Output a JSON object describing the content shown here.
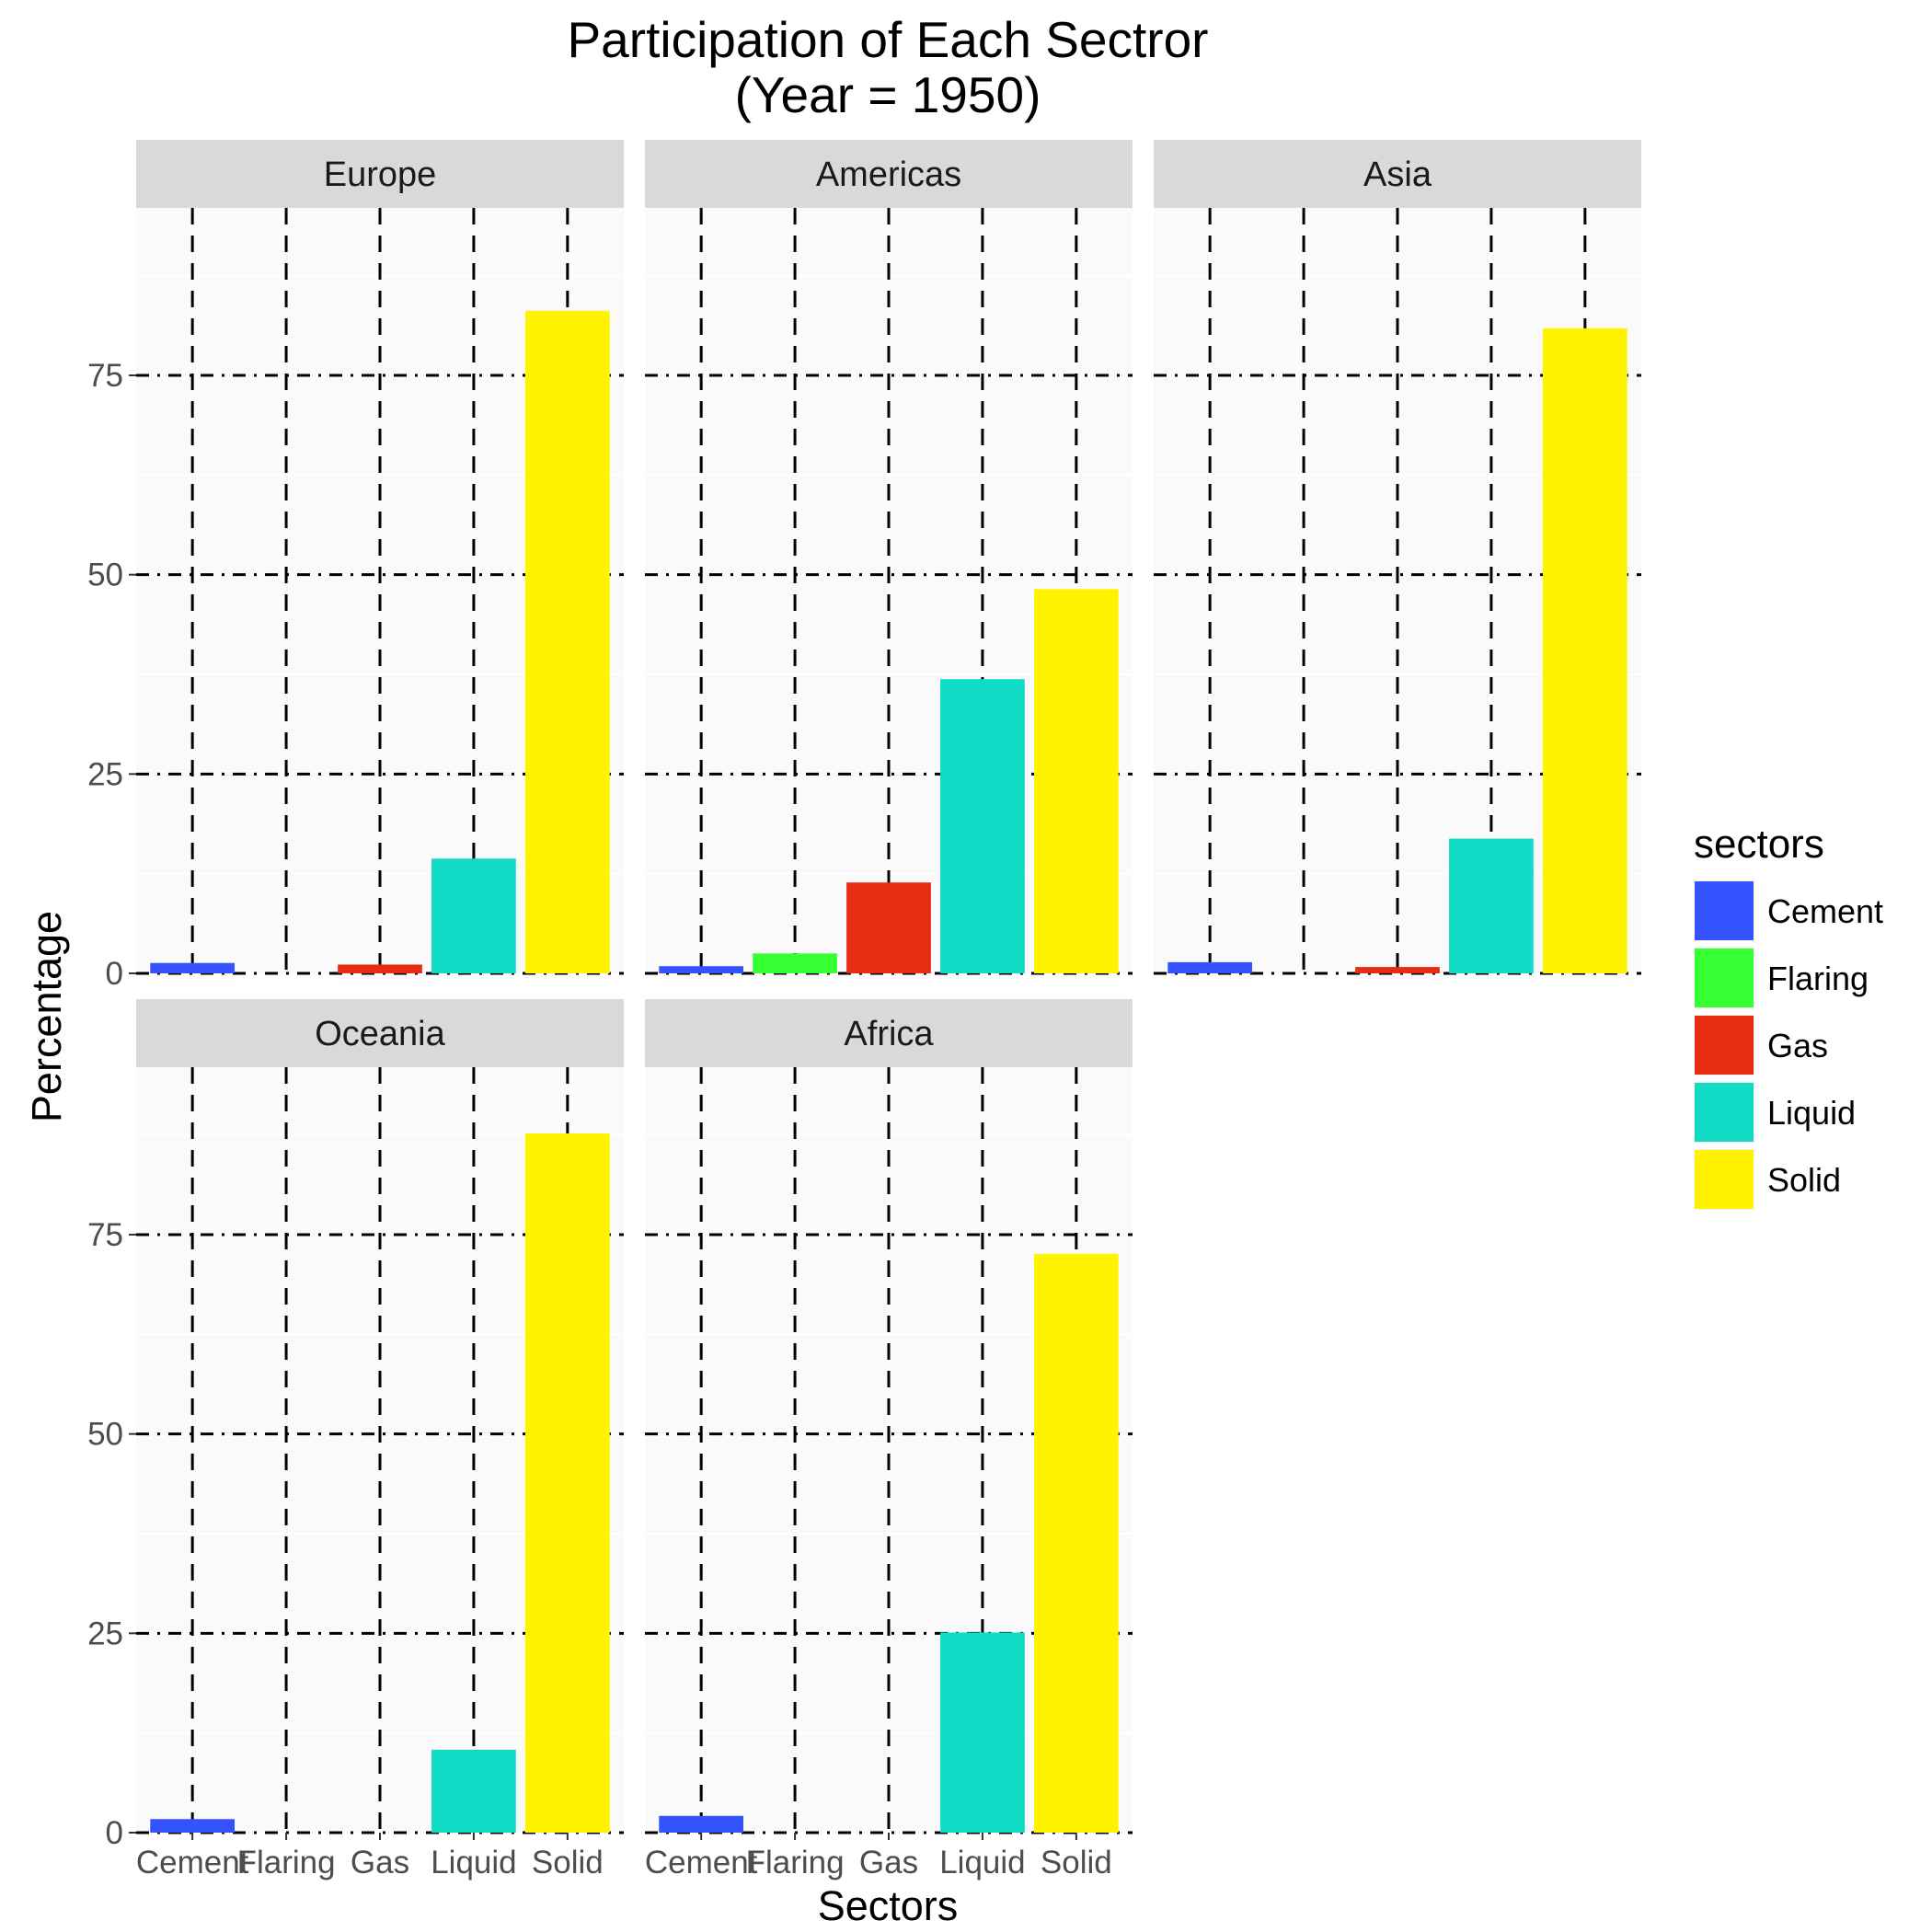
{
  "chart_data": {
    "type": "bar",
    "title_line1": "Participation of Each Sectror",
    "title_line2": "(Year = 1950)",
    "xlabel": "Sectors",
    "ylabel": "Percentage",
    "categories": [
      "Cement",
      "Flaring",
      "Gas",
      "Liquid",
      "Solid"
    ],
    "ylim": [
      0,
      96
    ],
    "yticks": [
      "0",
      "25",
      "50",
      "75"
    ],
    "ytick_values": [
      0,
      25,
      50,
      75
    ],
    "grid": "dashed",
    "legend": {
      "title": "sectors",
      "placement": "right",
      "entries": [
        "Cement",
        "Flaring",
        "Gas",
        "Liquid",
        "Solid"
      ]
    },
    "colors": {
      "Cement": "#3552ff",
      "Flaring": "#36ff32",
      "Gas": "#e72d14",
      "Liquid": "#12dbc5",
      "Solid": "#fff300"
    },
    "facets": [
      {
        "name": "Europe",
        "values": [
          1.3,
          0,
          1.1,
          14.4,
          83.1
        ]
      },
      {
        "name": "Americas",
        "values": [
          0.9,
          2.5,
          11.4,
          36.9,
          48.2
        ]
      },
      {
        "name": "Asia",
        "values": [
          1.4,
          0,
          0.8,
          16.9,
          80.9
        ]
      },
      {
        "name": "Oceania",
        "values": [
          1.7,
          0,
          0,
          10.4,
          87.7
        ]
      },
      {
        "name": "Africa",
        "values": [
          2.1,
          0,
          0,
          25.1,
          72.6
        ]
      }
    ]
  }
}
